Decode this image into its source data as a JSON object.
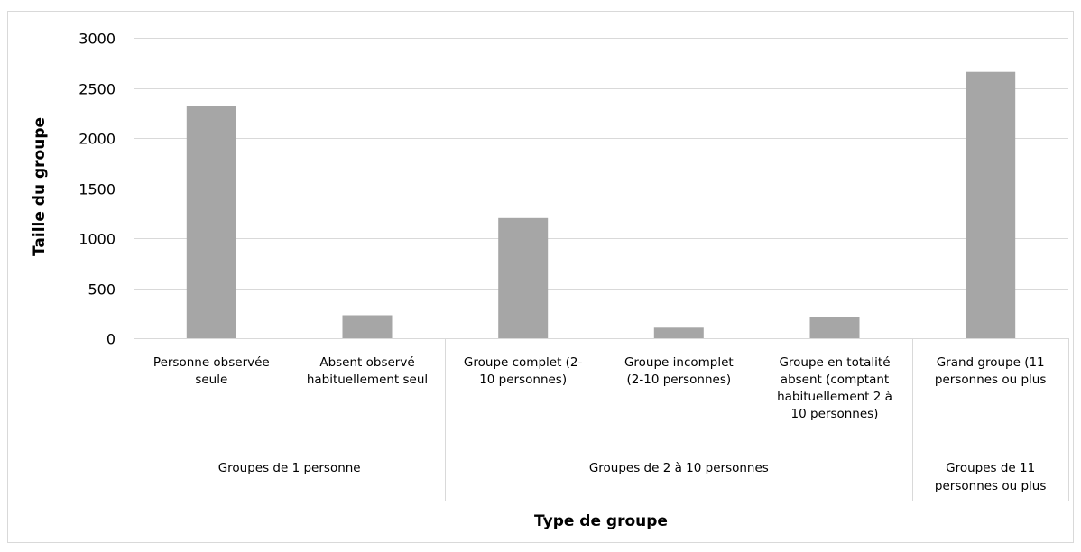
{
  "chart_data": {
    "type": "bar",
    "title": "",
    "xlabel": "Type de groupe",
    "ylabel": "Taille du groupe",
    "ylim": [
      0,
      3000
    ],
    "yticks": [
      0,
      500,
      1000,
      1500,
      2000,
      2500,
      3000
    ],
    "grid": true,
    "legend": "none",
    "bar_color": "#a6a6a6",
    "categories": [
      [
        "Personne observée",
        "seule"
      ],
      [
        "Absent observé",
        "habituellement seul"
      ],
      [
        "Groupe complet (2-",
        "10 personnes)"
      ],
      [
        "Groupe incomplet",
        "(2-10 personnes)"
      ],
      [
        "Groupe en totalité",
        "absent (comptant",
        "habituellement 2 à",
        "10 personnes)"
      ],
      [
        "Grand groupe (11",
        "personnes ou plus"
      ]
    ],
    "values": [
      2320,
      230,
      1200,
      105,
      210,
      2660
    ],
    "groups": [
      {
        "label": [
          "Groupes de 1 personne"
        ],
        "span": [
          0,
          1
        ]
      },
      {
        "label": [
          "Groupes de 2 à 10 personnes"
        ],
        "span": [
          2,
          4
        ]
      },
      {
        "label": [
          "Groupes de 11",
          "personnes ou plus"
        ],
        "span": [
          5,
          5
        ]
      }
    ]
  }
}
